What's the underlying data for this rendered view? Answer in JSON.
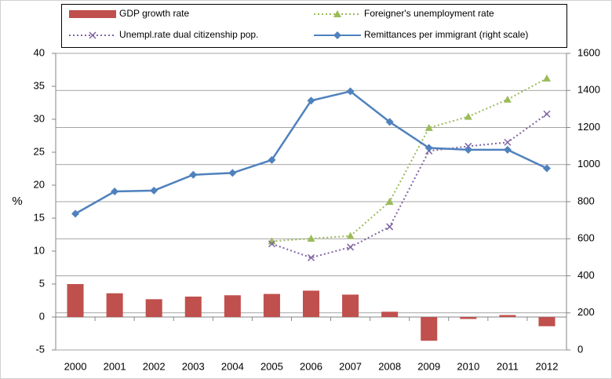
{
  "chart_data": {
    "type": "combo",
    "categories": [
      "2000",
      "2001",
      "2002",
      "2003",
      "2004",
      "2005",
      "2006",
      "2007",
      "2008",
      "2009",
      "2010",
      "2011",
      "2012"
    ],
    "ylabel": "%",
    "ylim": [
      -5,
      40
    ],
    "yticks": [
      -5,
      0,
      5,
      10,
      15,
      20,
      25,
      30,
      35,
      40
    ],
    "y2lim": [
      0,
      1600
    ],
    "y2ticks": [
      0,
      200,
      400,
      600,
      800,
      1000,
      1200,
      1400,
      1600
    ],
    "grid": true,
    "series": [
      {
        "name": "GDP growth rate",
        "type": "bar",
        "color": "#c0504d",
        "values": [
          5.0,
          3.6,
          2.7,
          3.1,
          3.3,
          3.5,
          4.0,
          3.4,
          0.8,
          -3.6,
          -0.3,
          0.3,
          -1.4
        ]
      },
      {
        "name": "Foreigner's unemployment  rate",
        "type": "line",
        "color": "#9bbb59",
        "dash": true,
        "marker": "triangle",
        "values": [
          null,
          null,
          null,
          null,
          null,
          11.5,
          11.9,
          12.3,
          17.5,
          28.7,
          30.4,
          33.0,
          36.2
        ]
      },
      {
        "name": "Unempl.rate dual citizenship pop.",
        "type": "line",
        "color": "#8064a2",
        "dash": true,
        "marker": "x",
        "values": [
          null,
          null,
          null,
          null,
          null,
          11.1,
          9.0,
          10.6,
          13.7,
          25.2,
          25.9,
          26.5,
          30.8
        ]
      },
      {
        "name": "Remittances per immigrant (right scale)",
        "type": "line",
        "color": "#4f81bd",
        "dash": false,
        "marker": "diamond",
        "axis": "y2",
        "values": [
          735,
          855,
          860,
          945,
          955,
          1025,
          1345,
          1395,
          1230,
          1090,
          1080,
          1080,
          980
        ]
      }
    ]
  }
}
